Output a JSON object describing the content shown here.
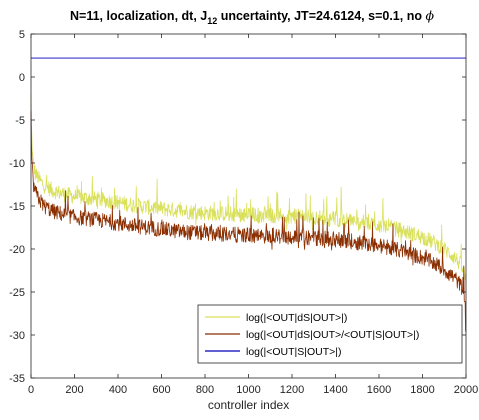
{
  "chart_data": {
    "type": "line",
    "title": {
      "part1": "N=11, localization, dt, J",
      "sub": "12",
      "part2": " uncertainty, JT=24.6124, s=0.1, no ",
      "symbol": "ϕ"
    },
    "xlabel": "controller index",
    "ylabel": "",
    "xlim": [
      0,
      2000
    ],
    "ylim": [
      -35,
      5
    ],
    "xticks": [
      0,
      200,
      400,
      600,
      800,
      1000,
      1200,
      1400,
      1600,
      1800,
      2000
    ],
    "yticks": [
      5,
      0,
      -5,
      -10,
      -15,
      -20,
      -25,
      -30,
      -35
    ],
    "grid": false,
    "legend_position": "bottom-right",
    "series": [
      {
        "name": "log(|<OUT|dS|OUT>|)",
        "color": "#d9e05a",
        "envelope": {
          "x": [
            0,
            2,
            5,
            10,
            20,
            40,
            60,
            100,
            150,
            200,
            300,
            400,
            500,
            600,
            700,
            800,
            900,
            1000,
            1100,
            1200,
            1300,
            1400,
            1500,
            1600,
            1700,
            1800,
            1850,
            1900,
            1950,
            1980,
            1995,
            2000
          ],
          "y": [
            -2,
            -5,
            -8,
            -10,
            -11.2,
            -12,
            -12.6,
            -13.2,
            -13.6,
            -13.9,
            -14.2,
            -14.6,
            -15,
            -15.3,
            -15.6,
            -15.8,
            -15.9,
            -16,
            -16.1,
            -16.2,
            -16.3,
            -16.5,
            -16.8,
            -17.2,
            -17.8,
            -18.6,
            -19.2,
            -20,
            -21,
            -22,
            -23,
            -24
          ]
        },
        "noise_amplitude": 1.8
      },
      {
        "name": "log(|<OUT|dS|OUT>/<OUT|S|OUT>|)",
        "color": "#8b2e00",
        "envelope": {
          "x": [
            0,
            2,
            5,
            10,
            20,
            40,
            60,
            100,
            150,
            200,
            300,
            400,
            500,
            600,
            700,
            800,
            900,
            1000,
            1100,
            1200,
            1300,
            1400,
            1500,
            1600,
            1700,
            1800,
            1850,
            1900,
            1950,
            1980,
            1995,
            2000
          ],
          "y": [
            -4,
            -7.5,
            -10.5,
            -12.4,
            -13.4,
            -14.3,
            -15,
            -15.6,
            -16,
            -16.3,
            -16.6,
            -17,
            -17.4,
            -17.7,
            -18,
            -18.2,
            -18.3,
            -18.4,
            -18.5,
            -18.6,
            -18.7,
            -18.9,
            -19.2,
            -19.6,
            -20.2,
            -21,
            -21.6,
            -22.4,
            -23.4,
            -24.4,
            -26,
            -30.5
          ]
        },
        "noise_amplitude": 1.8
      },
      {
        "name": "log(|<OUT|S|OUT>|)",
        "color": "#0000bb",
        "x": [
          0,
          2000
        ],
        "y": [
          2.2,
          2.2
        ]
      }
    ]
  }
}
